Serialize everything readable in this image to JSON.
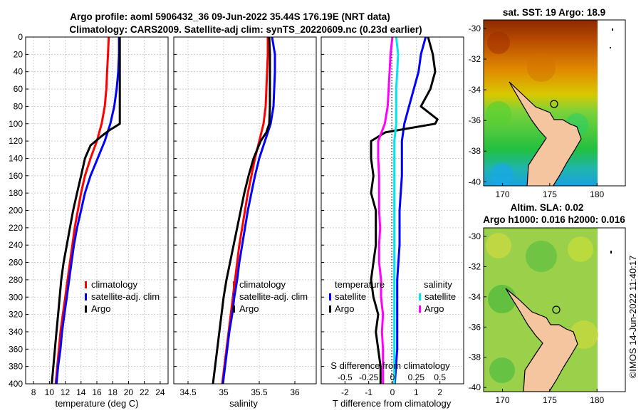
{
  "title": {
    "line1": "Argo profile: aoml 5906432_36 09-Jun-2022 35.44S 176.19E (NRT data)",
    "line2": "Climatology: CARS2009. Satellite-adj clim: synTS_20220609.nc (0.23d earlier)"
  },
  "colors": {
    "climatology": "#ff0000",
    "satellite": "#0000ff",
    "argo": "#000000",
    "salinity_satellite": "#00e5ee",
    "salinity_argo": "#ff00ff"
  },
  "chart_data": [
    {
      "id": "temperature",
      "type": "line",
      "xlabel": "temperature (deg C)",
      "ylabel": "depth",
      "xlim": [
        7,
        25
      ],
      "ylim": [
        0,
        400
      ],
      "xticks": [
        8,
        10,
        12,
        14,
        16,
        18,
        20,
        22,
        24
      ],
      "yticks": [
        0,
        20,
        40,
        60,
        80,
        100,
        120,
        140,
        160,
        180,
        200,
        220,
        240,
        260,
        280,
        300,
        320,
        340,
        360,
        380,
        400
      ],
      "grid": true,
      "legend": [
        "climatology",
        "satellite-adj. clim",
        "Argo"
      ],
      "series": [
        {
          "name": "climatology",
          "color": "#ff0000",
          "points": [
            [
              17.5,
              0
            ],
            [
              17.4,
              20
            ],
            [
              17.3,
              40
            ],
            [
              17.2,
              60
            ],
            [
              17.0,
              80
            ],
            [
              16.6,
              100
            ],
            [
              16.0,
              120
            ],
            [
              15.2,
              140
            ],
            [
              14.5,
              160
            ],
            [
              14.0,
              180
            ],
            [
              13.6,
              200
            ],
            [
              13.2,
              220
            ],
            [
              12.9,
              240
            ],
            [
              12.6,
              260
            ],
            [
              12.3,
              280
            ],
            [
              12.0,
              300
            ],
            [
              11.7,
              320
            ],
            [
              11.4,
              340
            ],
            [
              11.2,
              360
            ],
            [
              11.0,
              380
            ],
            [
              10.8,
              400
            ]
          ]
        },
        {
          "name": "satellite-adj. clim",
          "color": "#0000ff",
          "points": [
            [
              18.8,
              0
            ],
            [
              18.8,
              20
            ],
            [
              18.7,
              40
            ],
            [
              18.5,
              60
            ],
            [
              18.2,
              80
            ],
            [
              17.7,
              100
            ],
            [
              17.0,
              120
            ],
            [
              16.1,
              140
            ],
            [
              15.2,
              160
            ],
            [
              14.5,
              180
            ],
            [
              14.0,
              200
            ],
            [
              13.5,
              220
            ],
            [
              13.1,
              240
            ],
            [
              12.8,
              260
            ],
            [
              12.5,
              280
            ],
            [
              12.2,
              300
            ],
            [
              11.9,
              320
            ],
            [
              11.6,
              340
            ],
            [
              11.4,
              360
            ],
            [
              11.1,
              380
            ],
            [
              10.9,
              400
            ]
          ]
        },
        {
          "name": "Argo",
          "color": "#000000",
          "points": [
            [
              18.9,
              0
            ],
            [
              18.9,
              20
            ],
            [
              18.9,
              40
            ],
            [
              18.9,
              60
            ],
            [
              18.9,
              80
            ],
            [
              18.9,
              100
            ],
            [
              17.5,
              108
            ],
            [
              16.5,
              115
            ],
            [
              15.2,
              125
            ],
            [
              14.5,
              140
            ],
            [
              14.0,
              160
            ],
            [
              13.5,
              180
            ],
            [
              13.0,
              200
            ],
            [
              12.6,
              220
            ],
            [
              12.2,
              240
            ],
            [
              11.8,
              260
            ],
            [
              11.5,
              280
            ],
            [
              11.3,
              300
            ],
            [
              11.1,
              320
            ],
            [
              10.9,
              340
            ],
            [
              10.7,
              360
            ],
            [
              10.5,
              380
            ],
            [
              10.3,
              400
            ]
          ]
        }
      ]
    },
    {
      "id": "salinity",
      "type": "line",
      "xlabel": "salinity",
      "xlim": [
        34.3,
        36.3
      ],
      "ylim": [
        0,
        400
      ],
      "xticks": [
        34.5,
        35,
        35.5,
        36
      ],
      "tick_labels": [
        "34.5",
        "35",
        "35.5",
        "36"
      ],
      "grid": true,
      "legend": [
        "climatology",
        "satellite-adj. clim",
        "Argo"
      ],
      "series": [
        {
          "name": "climatology",
          "color": "#ff0000",
          "points": [
            [
              35.62,
              0
            ],
            [
              35.62,
              20
            ],
            [
              35.61,
              40
            ],
            [
              35.6,
              60
            ],
            [
              35.59,
              80
            ],
            [
              35.56,
              100
            ],
            [
              35.5,
              120
            ],
            [
              35.44,
              140
            ],
            [
              35.39,
              160
            ],
            [
              35.34,
              180
            ],
            [
              35.3,
              200
            ],
            [
              35.26,
              220
            ],
            [
              35.22,
              240
            ],
            [
              35.19,
              260
            ],
            [
              35.16,
              280
            ],
            [
              35.13,
              300
            ],
            [
              35.1,
              320
            ],
            [
              35.07,
              340
            ],
            [
              35.04,
              360
            ],
            [
              35.01,
              380
            ],
            [
              34.98,
              400
            ]
          ]
        },
        {
          "name": "satellite-adj. clim",
          "color": "#0000ff",
          "points": [
            [
              35.68,
              0
            ],
            [
              35.72,
              20
            ],
            [
              35.72,
              40
            ],
            [
              35.71,
              60
            ],
            [
              35.7,
              80
            ],
            [
              35.66,
              100
            ],
            [
              35.58,
              120
            ],
            [
              35.5,
              140
            ],
            [
              35.44,
              160
            ],
            [
              35.39,
              180
            ],
            [
              35.34,
              200
            ],
            [
              35.3,
              220
            ],
            [
              35.26,
              240
            ],
            [
              35.22,
              260
            ],
            [
              35.19,
              280
            ],
            [
              35.15,
              300
            ],
            [
              35.12,
              320
            ],
            [
              35.08,
              340
            ],
            [
              35.05,
              360
            ],
            [
              35.02,
              380
            ],
            [
              34.99,
              400
            ]
          ]
        },
        {
          "name": "Argo",
          "color": "#000000",
          "points": [
            [
              35.64,
              0
            ],
            [
              35.65,
              20
            ],
            [
              35.65,
              40
            ],
            [
              35.65,
              60
            ],
            [
              35.65,
              80
            ],
            [
              35.64,
              100
            ],
            [
              35.6,
              110
            ],
            [
              35.52,
              120
            ],
            [
              35.42,
              140
            ],
            [
              35.35,
              160
            ],
            [
              35.29,
              180
            ],
            [
              35.24,
              200
            ],
            [
              35.19,
              220
            ],
            [
              35.14,
              240
            ],
            [
              35.09,
              260
            ],
            [
              35.04,
              280
            ],
            [
              35.0,
              300
            ],
            [
              34.97,
              320
            ],
            [
              34.94,
              340
            ],
            [
              34.91,
              360
            ],
            [
              34.88,
              380
            ],
            [
              34.85,
              400
            ]
          ]
        }
      ]
    },
    {
      "id": "difference",
      "type": "line",
      "xlabel": "T difference from climatology",
      "top_label": "S difference from climatology",
      "xlim": [
        -3,
        3
      ],
      "ylim": [
        0,
        400
      ],
      "xticks": [
        -2,
        -1,
        0,
        1,
        2
      ],
      "top_ticks": [
        -0.5,
        -0.25,
        0,
        0.25,
        0.5
      ],
      "top_tick_labels": [
        "-0.5",
        "-0.25",
        "0",
        "0.25",
        "0.5"
      ],
      "grid": true,
      "legend_groups": [
        {
          "title": "temperature",
          "items": [
            "satellite",
            "Argo"
          ]
        },
        {
          "title": "salinity",
          "items": [
            "satellite",
            "Argo"
          ]
        }
      ],
      "series": [
        {
          "name": "temperature satellite",
          "color": "#0000ff",
          "points": [
            [
              1.4,
              0
            ],
            [
              1.2,
              20
            ],
            [
              1.1,
              40
            ],
            [
              0.9,
              60
            ],
            [
              0.7,
              80
            ],
            [
              0.5,
              100
            ],
            [
              0.4,
              120
            ],
            [
              0.4,
              140
            ],
            [
              0.4,
              160
            ],
            [
              0.3,
              200
            ],
            [
              0.3,
              240
            ],
            [
              0.2,
              280
            ],
            [
              0.2,
              320
            ],
            [
              0.2,
              360
            ],
            [
              0.1,
              400
            ]
          ]
        },
        {
          "name": "temperature Argo",
          "color": "#000000",
          "points": [
            [
              1.5,
              0
            ],
            [
              1.7,
              20
            ],
            [
              1.8,
              40
            ],
            [
              1.6,
              60
            ],
            [
              1.2,
              80
            ],
            [
              1.9,
              95
            ],
            [
              1.8,
              100
            ],
            [
              -0.3,
              110
            ],
            [
              -0.9,
              120
            ],
            [
              -0.9,
              140
            ],
            [
              -0.8,
              160
            ],
            [
              -0.9,
              180
            ],
            [
              -0.7,
              200
            ],
            [
              -0.7,
              220
            ],
            [
              -0.7,
              240
            ],
            [
              -0.8,
              260
            ],
            [
              -0.9,
              280
            ],
            [
              -0.8,
              300
            ],
            [
              -0.6,
              320
            ],
            [
              -0.7,
              340
            ],
            [
              -0.6,
              360
            ],
            [
              -0.5,
              380
            ],
            [
              -0.5,
              400
            ]
          ]
        },
        {
          "name": "salinity satellite",
          "color": "#00e5ee",
          "points": [
            [
              0.04,
              0
            ],
            [
              0.06,
              20
            ],
            [
              0.05,
              40
            ],
            [
              0.04,
              60
            ],
            [
              0.04,
              80
            ],
            [
              0.04,
              100
            ],
            [
              0.02,
              120
            ],
            [
              0.02,
              160
            ],
            [
              0.02,
              200
            ],
            [
              0.02,
              240
            ],
            [
              0.02,
              280
            ],
            [
              0.02,
              320
            ],
            [
              0.02,
              360
            ],
            [
              0.02,
              400
            ]
          ]
        },
        {
          "name": "salinity Argo",
          "color": "#ff00ff",
          "points": [
            [
              0.0,
              0
            ],
            [
              -0.02,
              20
            ],
            [
              -0.03,
              40
            ],
            [
              -0.04,
              60
            ],
            [
              -0.05,
              80
            ],
            [
              -0.08,
              100
            ],
            [
              -0.15,
              120
            ],
            [
              -0.15,
              140
            ],
            [
              -0.14,
              160
            ],
            [
              -0.14,
              180
            ],
            [
              -0.14,
              200
            ],
            [
              -0.13,
              220
            ],
            [
              -0.14,
              240
            ],
            [
              -0.14,
              260
            ],
            [
              -0.12,
              280
            ],
            [
              -0.12,
              300
            ],
            [
              -0.1,
              320
            ],
            [
              -0.11,
              340
            ],
            [
              -0.1,
              360
            ],
            [
              -0.1,
              380
            ],
            [
              -0.1,
              400
            ]
          ]
        }
      ]
    },
    {
      "id": "sst_map",
      "type": "heatmap",
      "title": "sat. SST: 19 Argo: 18.9",
      "xticks": [
        170,
        175,
        180
      ],
      "yticks": [
        -30,
        -32,
        -34,
        -36,
        -38,
        -40
      ]
    },
    {
      "id": "sla_map",
      "type": "heatmap",
      "title_line1": "Altim. SLA: 0.02",
      "title_line2": "Argo h1000: 0.016 h2000: 0.016",
      "xticks": [
        170,
        175,
        180
      ],
      "yticks": [
        -30,
        -32,
        -34,
        -36,
        -38,
        -40
      ]
    }
  ],
  "watermark": "©IMOS 14-Jun-2022 11:40:17"
}
